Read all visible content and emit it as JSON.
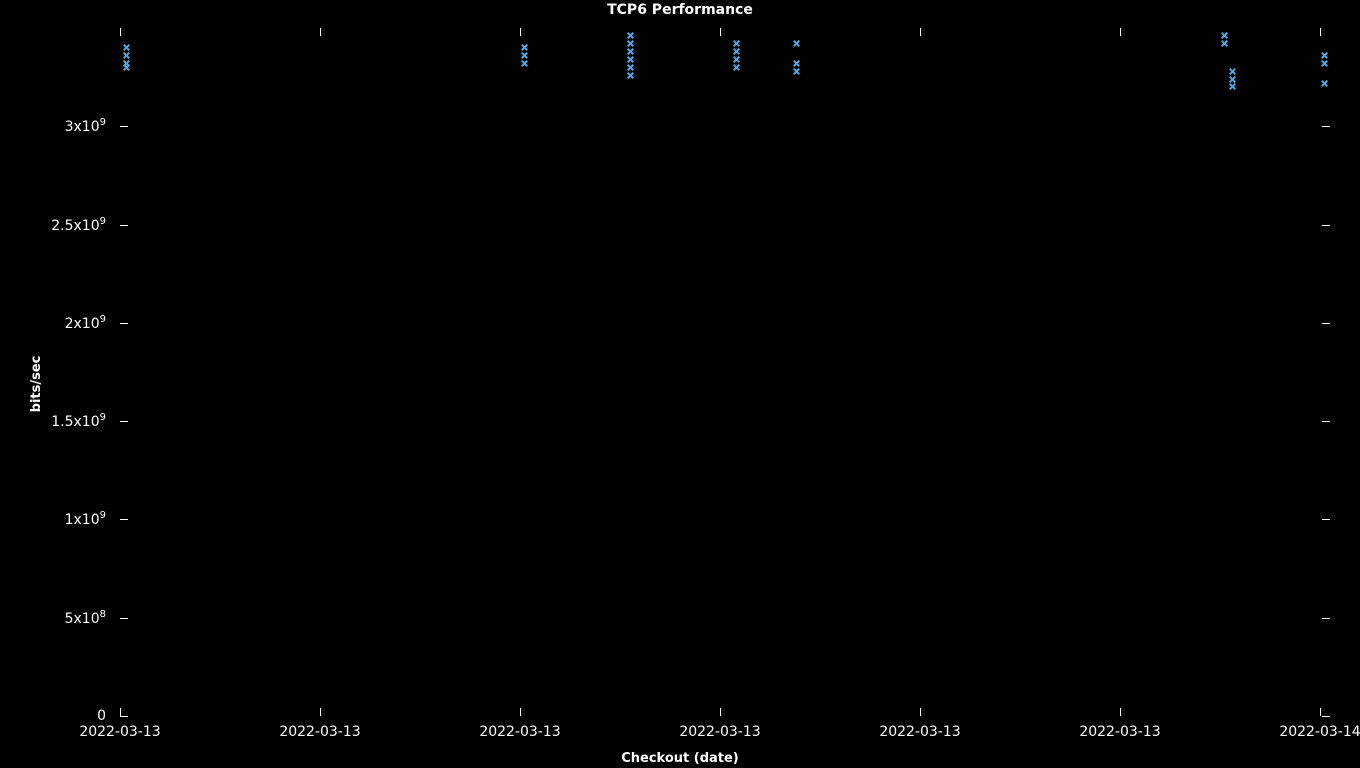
{
  "chart": {
    "type": "scatter",
    "title": "TCP6 Performance",
    "xlabel": "Checkout (date)",
    "ylabel": "bits/sec",
    "background_color": "#000000",
    "text_color": "#ffffff",
    "marker_color": "#4aa8e0",
    "marker_style": "x",
    "marker_size": 7,
    "title_fontsize": 14,
    "label_fontsize": 13,
    "tick_fontsize": 14,
    "ylim": [
      0,
      3500000000.0
    ],
    "yticks": [
      {
        "value": 0,
        "label_prefix": "0",
        "label_exp": ""
      },
      {
        "value": 500000000.0,
        "label_prefix": "5x10",
        "label_exp": "8"
      },
      {
        "value": 1000000000.0,
        "label_prefix": "1x10",
        "label_exp": "9"
      },
      {
        "value": 1500000000.0,
        "label_prefix": "1.5x10",
        "label_exp": "9"
      },
      {
        "value": 2000000000.0,
        "label_prefix": "2x10",
        "label_exp": "9"
      },
      {
        "value": 2500000000.0,
        "label_prefix": "2.5x10",
        "label_exp": "9"
      },
      {
        "value": 3000000000.0,
        "label_prefix": "3x10",
        "label_exp": "9"
      }
    ],
    "xlim": [
      0,
      6.05
    ],
    "xticks": [
      {
        "value": 0,
        "label": "2022-03-13"
      },
      {
        "value": 1,
        "label": "2022-03-13"
      },
      {
        "value": 2,
        "label": "2022-03-13"
      },
      {
        "value": 3,
        "label": "2022-03-13"
      },
      {
        "value": 4,
        "label": "2022-03-13"
      },
      {
        "value": 5,
        "label": "2022-03-13"
      },
      {
        "value": 6,
        "label": "2022-03-14",
        "clip_right": true
      }
    ],
    "data_points": [
      {
        "x": 0.03,
        "y": 3400000000.0
      },
      {
        "x": 0.03,
        "y": 3360000000.0
      },
      {
        "x": 0.03,
        "y": 3320000000.0
      },
      {
        "x": 0.03,
        "y": 3300000000.0
      },
      {
        "x": 2.02,
        "y": 3400000000.0
      },
      {
        "x": 2.02,
        "y": 3360000000.0
      },
      {
        "x": 2.02,
        "y": 3320000000.0
      },
      {
        "x": 2.55,
        "y": 3460000000.0
      },
      {
        "x": 2.55,
        "y": 3420000000.0
      },
      {
        "x": 2.55,
        "y": 3380000000.0
      },
      {
        "x": 2.55,
        "y": 3340000000.0
      },
      {
        "x": 2.55,
        "y": 3300000000.0
      },
      {
        "x": 2.55,
        "y": 3260000000.0
      },
      {
        "x": 3.08,
        "y": 3420000000.0
      },
      {
        "x": 3.08,
        "y": 3380000000.0
      },
      {
        "x": 3.08,
        "y": 3340000000.0
      },
      {
        "x": 3.08,
        "y": 3300000000.0
      },
      {
        "x": 3.38,
        "y": 3420000000.0
      },
      {
        "x": 3.38,
        "y": 3320000000.0
      },
      {
        "x": 3.38,
        "y": 3280000000.0
      },
      {
        "x": 5.52,
        "y": 3460000000.0
      },
      {
        "x": 5.52,
        "y": 3420000000.0
      },
      {
        "x": 5.56,
        "y": 3280000000.0
      },
      {
        "x": 5.56,
        "y": 3240000000.0
      },
      {
        "x": 5.56,
        "y": 3200000000.0
      },
      {
        "x": 6.02,
        "y": 3360000000.0
      },
      {
        "x": 6.02,
        "y": 3320000000.0
      },
      {
        "x": 6.02,
        "y": 3220000000.0
      }
    ]
  }
}
